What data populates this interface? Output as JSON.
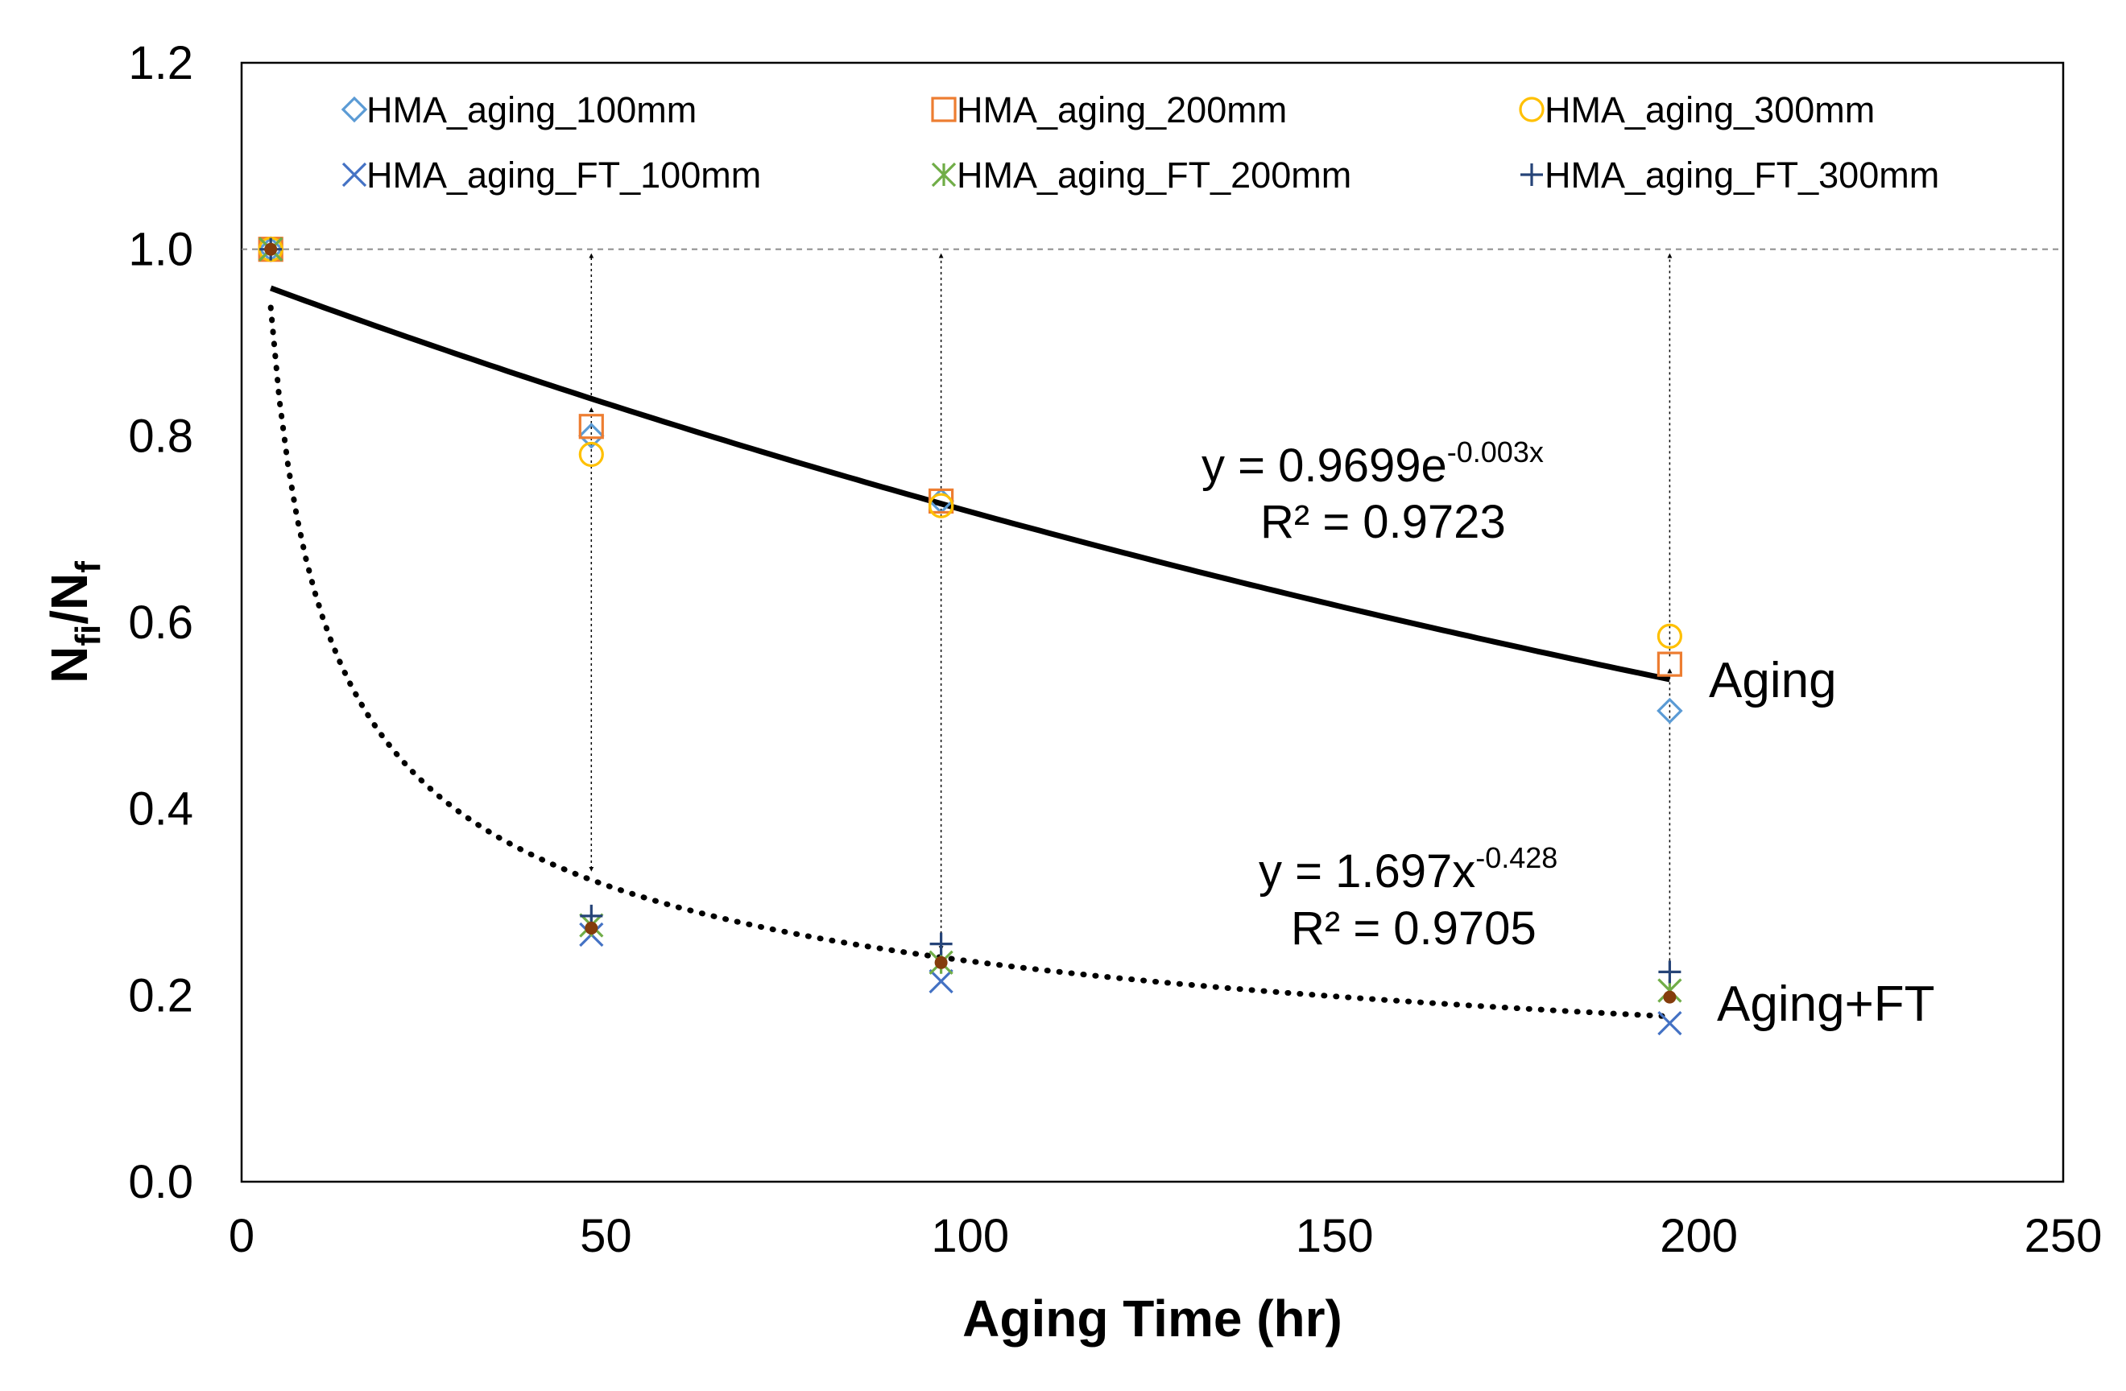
{
  "chart_data": {
    "type": "scatter",
    "title": "",
    "xlabel": "Aging Time (hr)",
    "ylabel": {
      "main": "N",
      "sub1": "fi",
      "sep": "/N",
      "sub2": "f"
    },
    "xlim": [
      0,
      250
    ],
    "ylim": [
      0,
      1.2
    ],
    "xticks": [
      0,
      50,
      100,
      150,
      200,
      250
    ],
    "yticks": [
      0.0,
      0.2,
      0.4,
      0.6,
      0.8,
      1.0,
      1.2
    ],
    "grid": "dashed horizontal line at y = 1.0",
    "legend_position": "top, inside plot, 3 columns",
    "series": [
      {
        "name": "HMA_aging_100mm",
        "marker": "diamond",
        "color": "#5B9BD5",
        "x": [
          4,
          48,
          96,
          196
        ],
        "y": [
          1.0,
          0.8,
          0.73,
          0.505
        ]
      },
      {
        "name": "HMA_aging_200mm",
        "marker": "square",
        "color": "#ED7D31",
        "x": [
          4,
          48,
          96,
          196
        ],
        "y": [
          1.0,
          0.81,
          0.73,
          0.555
        ]
      },
      {
        "name": "HMA_aging_300mm",
        "marker": "circle",
        "color": "#FFC000",
        "x": [
          4,
          48,
          96,
          196
        ],
        "y": [
          1.0,
          0.78,
          0.725,
          0.585
        ]
      },
      {
        "name": "HMA_aging_FT_100mm",
        "marker": "x",
        "color": "#4472C4",
        "x": [
          4,
          48,
          96,
          196
        ],
        "y": [
          1.0,
          0.265,
          0.215,
          0.17
        ]
      },
      {
        "name": "HMA_aging_FT_200mm",
        "marker": "star",
        "color": "#70AD47",
        "x": [
          4,
          48,
          96,
          196
        ],
        "y": [
          1.0,
          0.275,
          0.235,
          0.205
        ]
      },
      {
        "name": "HMA_aging_FT_300mm",
        "marker": "plus",
        "color": "#264478",
        "x": [
          4,
          48,
          96,
          196
        ],
        "y": [
          1.0,
          0.285,
          0.255,
          0.225
        ]
      }
    ],
    "average_points": {
      "color": "#843C0C",
      "x": [
        4,
        48,
        96,
        196
      ],
      "y": [
        1.0,
        0.272,
        0.235,
        0.198
      ]
    },
    "trendlines": [
      {
        "name": "Aging",
        "type": "exponential",
        "a": 0.9699,
        "b": -0.003,
        "x_range": [
          4,
          196
        ],
        "style": "solid",
        "equation": {
          "prefix": "y = 0.9699e",
          "exponent": "-0.003x"
        },
        "r2": "R² = 0.9723"
      },
      {
        "name": "Aging+FT",
        "type": "power",
        "a": 1.697,
        "b": -0.428,
        "x_range": [
          4,
          196
        ],
        "style": "dotted",
        "equation": {
          "prefix": "y = 1.697x",
          "exponent": "-0.428"
        },
        "r2": "R² = 0.9705"
      }
    ],
    "drop_arrows": [
      {
        "x": 48,
        "mid": 0.84,
        "bottom": 0.33
      },
      {
        "x": 96,
        "mid": 0.74,
        "bottom": 0.245
      },
      {
        "x": 196,
        "mid": 0.56,
        "bottom": 0.2
      }
    ]
  }
}
